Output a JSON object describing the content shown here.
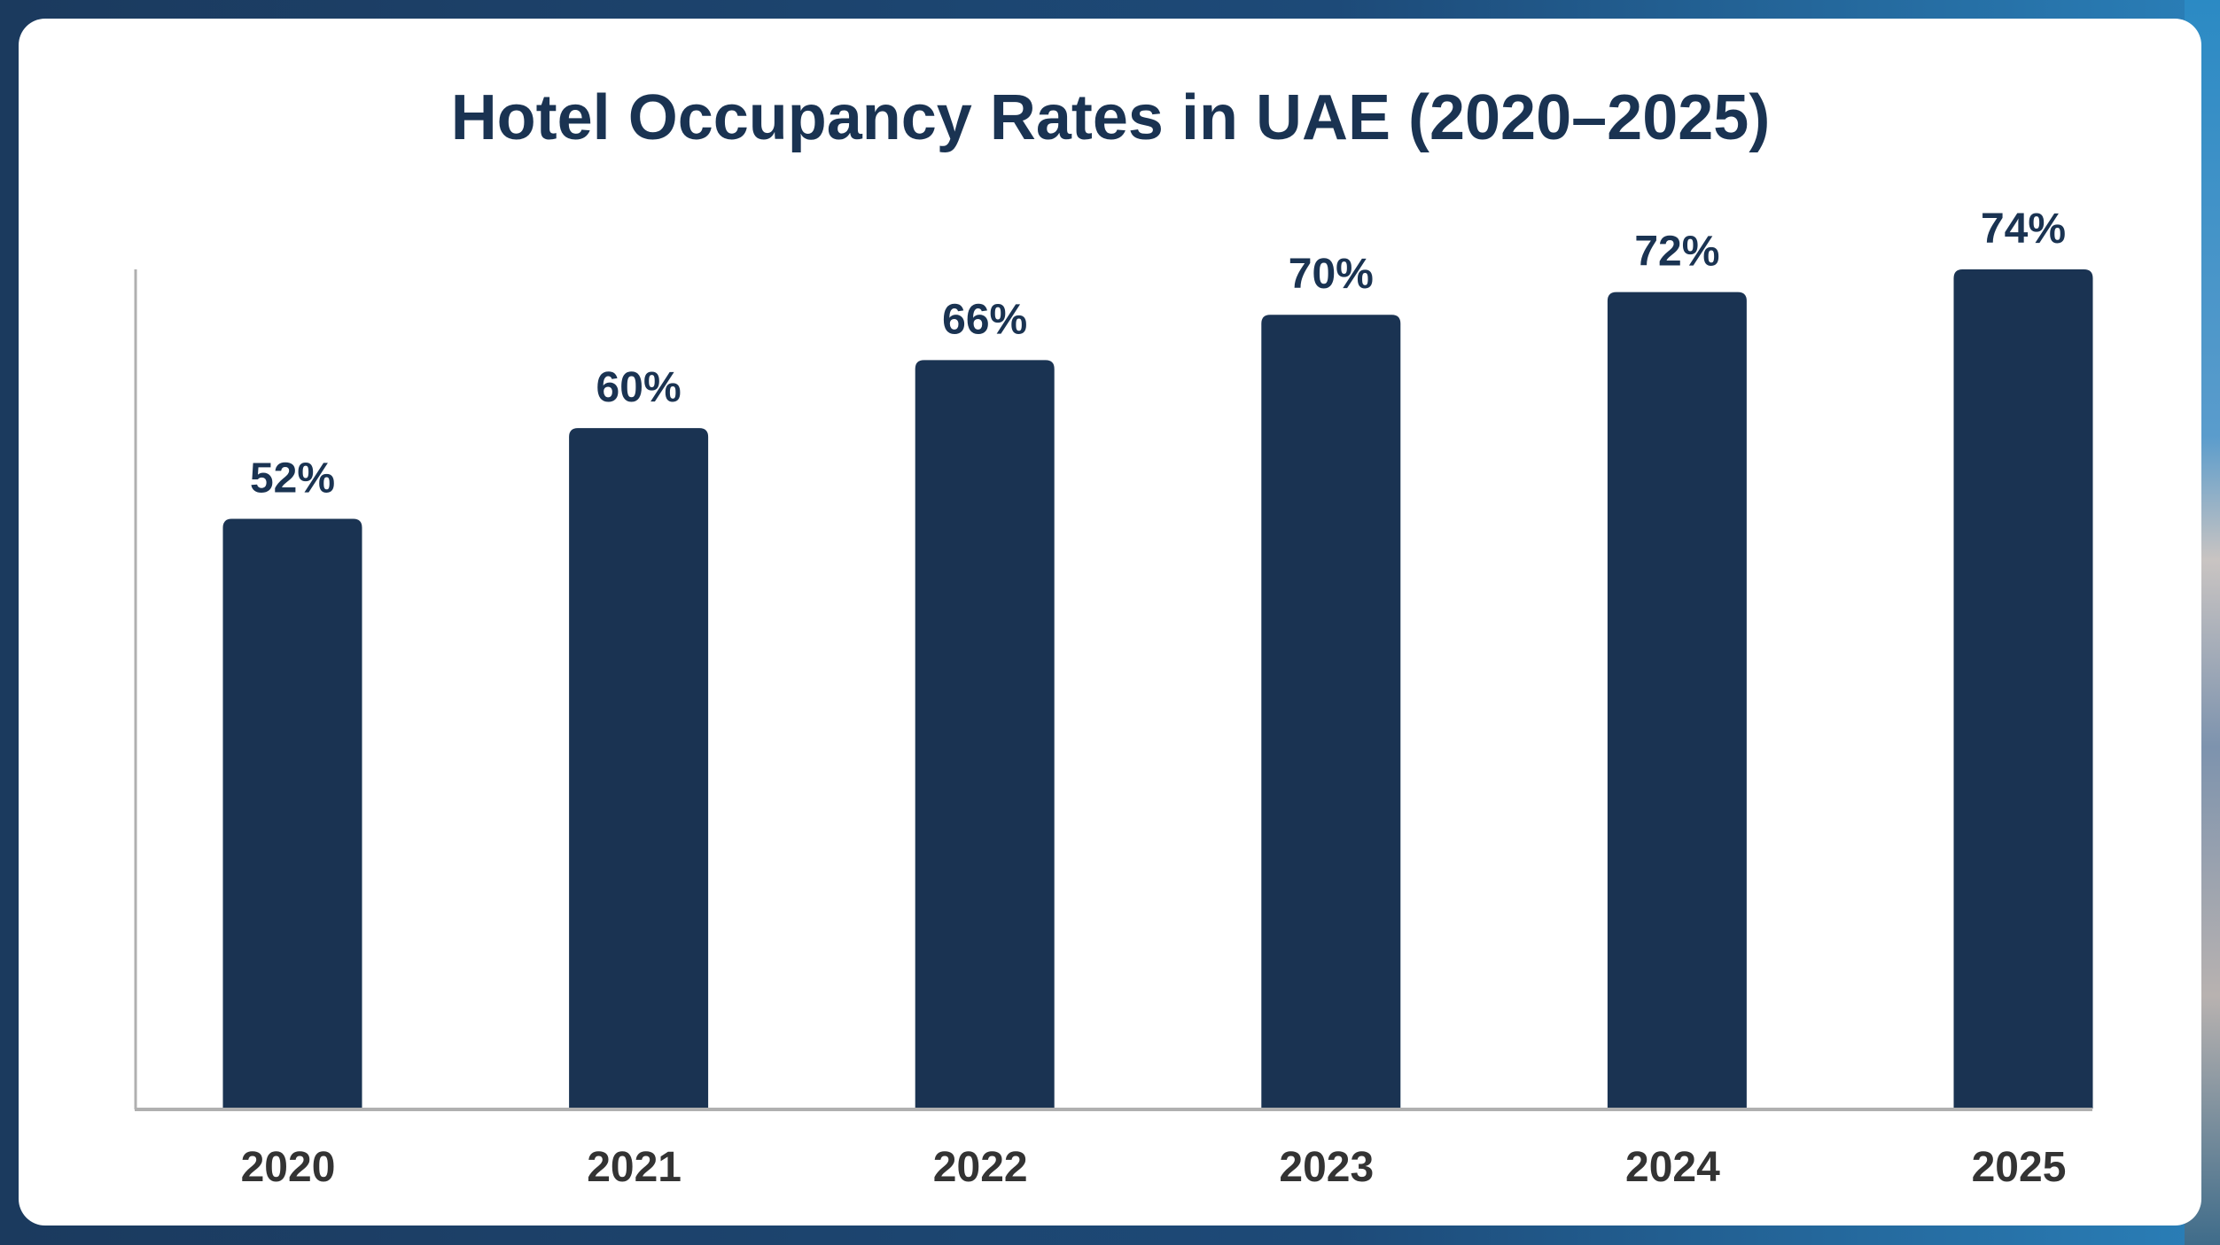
{
  "chart_data": {
    "type": "bar",
    "title": "Hotel Occupancy Rates in UAE (2020–2025)",
    "categories": [
      "2020",
      "2021",
      "2022",
      "2023",
      "2024",
      "2025"
    ],
    "values": [
      52,
      60,
      66,
      70,
      72,
      74
    ],
    "data_labels": [
      "52%",
      "60%",
      "66%",
      "70%",
      "72%",
      "74%"
    ],
    "xlabel": "",
    "ylabel": "",
    "ylim": [
      0,
      74
    ],
    "grid": false,
    "bar_color": "#1a3352",
    "title_color": "#1a3352",
    "background_color": "#ffffff"
  }
}
